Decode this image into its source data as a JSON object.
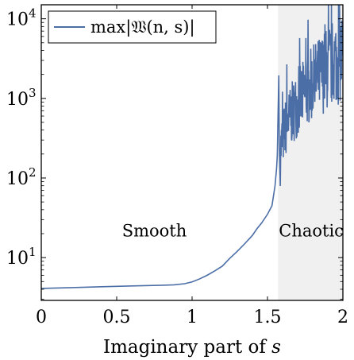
{
  "chart_data": {
    "type": "line",
    "xlabel": "Imaginary part of s",
    "xlabel_prefix": "Imaginary part of ",
    "xlabel_var": "s",
    "ylabel": "",
    "y_scale": "log",
    "xlim": [
      0,
      2
    ],
    "ylim": [
      2.9,
      15000
    ],
    "x_ticks": [
      {
        "value": 0,
        "label": "0"
      },
      {
        "value": 0.5,
        "label": "0.5"
      },
      {
        "value": 1,
        "label": "1"
      },
      {
        "value": 1.5,
        "label": "1.5"
      },
      {
        "value": 2,
        "label": "2"
      }
    ],
    "y_ticks": [
      {
        "value": 10,
        "base": "10",
        "exp": "1"
      },
      {
        "value": 100,
        "base": "10",
        "exp": "2"
      },
      {
        "value": 1000,
        "base": "10",
        "exp": "3"
      },
      {
        "value": 10000,
        "base": "10",
        "exp": "4"
      }
    ],
    "legend": {
      "position": "top-left",
      "entry": "max|𝔚(n, s)|"
    },
    "shaded_region": {
      "x_start": 1.57,
      "x_end": 2.0,
      "color": "#f0f0f0"
    },
    "annotations": [
      {
        "text": "Smooth",
        "x": 0.75,
        "y": 15
      },
      {
        "text": "Chaotic",
        "x": 1.79,
        "y": 15
      }
    ],
    "series": [
      {
        "name": "max|𝔚(n, s)|",
        "color": "#4c6ea6",
        "x": [
          0,
          0.2,
          0.4,
          0.6,
          0.8,
          0.88,
          0.95,
          1.0,
          1.05,
          1.1,
          1.15,
          1.2,
          1.25,
          1.3,
          1.35,
          1.4,
          1.43,
          1.46,
          1.5,
          1.53,
          1.55,
          1.56,
          1.565
        ],
        "y": [
          4.1,
          4.2,
          4.3,
          4.4,
          4.5,
          4.55,
          4.7,
          4.95,
          5.4,
          6.0,
          6.8,
          7.8,
          9.8,
          12.0,
          15.0,
          19.0,
          23.0,
          27.0,
          35.0,
          45.0,
          80.0,
          130.0,
          190.0
        ]
      }
    ]
  }
}
